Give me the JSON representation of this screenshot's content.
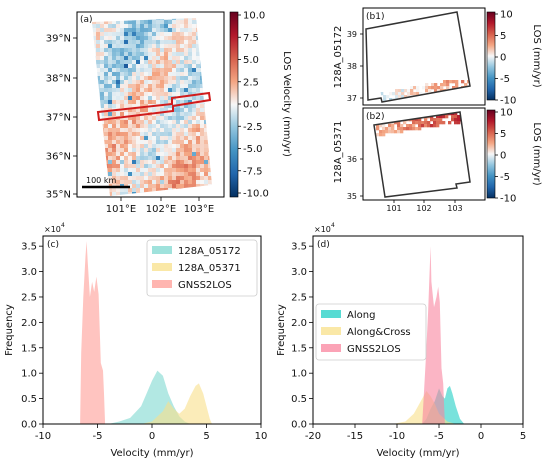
{
  "chart_data": [
    {
      "panel": "(a)",
      "type": "heatmap",
      "x_ticks": [
        "101°E",
        "102°E",
        "103°E"
      ],
      "y_ticks": [
        "35°N",
        "36°N",
        "37°N",
        "38°N",
        "39°N"
      ],
      "scalebar": "100 km",
      "colorbar": {
        "label": "LOS Velocity (mm/yr)",
        "ticks": [
          "10.0",
          "7.5",
          "5.0",
          "2.5",
          "0.0",
          "-2.5",
          "-5.0",
          "-7.5",
          "-10.0"
        ],
        "range": [
          -10,
          10
        ],
        "colormap": [
          "#053061",
          "#2166ac",
          "#4393c3",
          "#92c5de",
          "#f7f7f7",
          "#f4a582",
          "#d6604d",
          "#b2182b",
          "#67001f"
        ]
      },
      "highlight_color": "#d01c1c"
    },
    {
      "panel": "(b1)",
      "type": "heatmap",
      "ylabel": "128A_05172",
      "x_ticks": [],
      "y_ticks": [
        "37",
        "38",
        "39"
      ],
      "colorbar": {
        "label": "LOS (mm/yr)",
        "ticks": [
          "10",
          "5",
          "0",
          "-5",
          "-10"
        ],
        "range": [
          -10,
          10
        ]
      }
    },
    {
      "panel": "(b2)",
      "type": "heatmap",
      "ylabel": "128A_05371",
      "x_ticks": [
        "101",
        "102",
        "103"
      ],
      "y_ticks": [
        "35",
        "36"
      ],
      "colorbar": {
        "label": "LOS (mm/yr)",
        "ticks": [
          "10",
          "5",
          "0",
          "-5",
          "-10"
        ],
        "range": [
          -10,
          10
        ]
      }
    },
    {
      "panel": "(c)",
      "type": "area",
      "xlabel": "Velocity (mm/yr)",
      "ylabel": "Frequency",
      "y_multiplier": "×10",
      "y_multiplier_exp": "4",
      "xlim": [
        -10,
        10
      ],
      "ylim": [
        0,
        3.7
      ],
      "x_ticks": [
        "-10",
        "-5",
        "0",
        "5",
        "10"
      ],
      "y_ticks": [
        "0.0",
        "0.5",
        "1.0",
        "1.5",
        "2.0",
        "2.5",
        "3.0",
        "3.5"
      ],
      "legend_position": "top-right",
      "series": [
        {
          "name": "128A_05172",
          "color": "#7fd8d0",
          "points": [
            [
              -4,
              0
            ],
            [
              -3,
              0.05
            ],
            [
              -2,
              0.12
            ],
            [
              -1,
              0.35
            ],
            [
              -0.5,
              0.6
            ],
            [
              0,
              0.85
            ],
            [
              0.5,
              1.05
            ],
            [
              1,
              0.95
            ],
            [
              1.5,
              0.6
            ],
            [
              2,
              0.35
            ],
            [
              2.5,
              0.15
            ],
            [
              3,
              0.05
            ],
            [
              3.5,
              0
            ]
          ]
        },
        {
          "name": "128A_05371",
          "color": "#f8e08a",
          "points": [
            [
              -1,
              0
            ],
            [
              0,
              0.05
            ],
            [
              1,
              0.25
            ],
            [
              1.5,
              0.45
            ],
            [
              2,
              0.3
            ],
            [
              2.5,
              0.2
            ],
            [
              3,
              0.3
            ],
            [
              3.5,
              0.55
            ],
            [
              4,
              0.75
            ],
            [
              4.3,
              0.8
            ],
            [
              4.7,
              0.6
            ],
            [
              5,
              0.35
            ],
            [
              5.3,
              0.1
            ],
            [
              5.5,
              0
            ]
          ]
        },
        {
          "name": "GNSS2LOS",
          "color": "#ff9c96",
          "points": [
            [
              -6.6,
              0
            ],
            [
              -6.5,
              1.4
            ],
            [
              -6.3,
              2.5
            ],
            [
              -6.1,
              3.3
            ],
            [
              -6.0,
              3.6
            ],
            [
              -5.9,
              3.2
            ],
            [
              -5.7,
              2.5
            ],
            [
              -5.5,
              2.8
            ],
            [
              -5.3,
              2.6
            ],
            [
              -5.1,
              2.9
            ],
            [
              -4.9,
              2.55
            ],
            [
              -4.7,
              1.2
            ],
            [
              -4.5,
              1.05
            ],
            [
              -4.4,
              0.6
            ],
            [
              -4.3,
              0
            ]
          ]
        }
      ]
    },
    {
      "panel": "(d)",
      "type": "area",
      "xlabel": "Velocity (mm/yr)",
      "ylabel": "Frequency",
      "y_multiplier": "×10",
      "y_multiplier_exp": "4",
      "xlim": [
        -20,
        5
      ],
      "ylim": [
        0,
        3.7
      ],
      "x_ticks": [
        "-20",
        "-15",
        "-10",
        "-5",
        "0",
        "5"
      ],
      "y_ticks": [
        "0.0",
        "0.5",
        "1.0",
        "1.5",
        "2.0",
        "2.5",
        "3.0",
        "3.5"
      ],
      "legend_position": "center-left",
      "series": [
        {
          "name": "Along",
          "color": "#1fcfc4",
          "points": [
            [
              -7,
              0
            ],
            [
              -6.5,
              0.1
            ],
            [
              -6,
              0.3
            ],
            [
              -5.5,
              0.45
            ],
            [
              -5,
              0.7
            ],
            [
              -4.6,
              0.55
            ],
            [
              -4.3,
              0.5
            ],
            [
              -4,
              0.7
            ],
            [
              -3.7,
              0.75
            ],
            [
              -3.4,
              0.6
            ],
            [
              -3,
              0.35
            ],
            [
              -2.5,
              0.1
            ],
            [
              -2,
              0
            ]
          ]
        },
        {
          "name": "Along&Cross",
          "color": "#f8e08a",
          "points": [
            [
              -10.5,
              0
            ],
            [
              -9,
              0.05
            ],
            [
              -8,
              0.2
            ],
            [
              -7.5,
              0.35
            ],
            [
              -7,
              0.5
            ],
            [
              -6.5,
              0.65
            ],
            [
              -6,
              0.55
            ],
            [
              -5.5,
              0.4
            ],
            [
              -5,
              0.2
            ],
            [
              -4,
              0.05
            ],
            [
              -3,
              0
            ]
          ]
        },
        {
          "name": "GNSS2LOS",
          "color": "#f9849e",
          "points": [
            [
              -7,
              0
            ],
            [
              -6.8,
              0.6
            ],
            [
              -6.6,
              1.2
            ],
            [
              -6.3,
              2.2
            ],
            [
              -6.1,
              3.1
            ],
            [
              -6.0,
              3.5
            ],
            [
              -5.9,
              2.8
            ],
            [
              -5.6,
              2.3
            ],
            [
              -5.3,
              2.5
            ],
            [
              -5.1,
              2.7
            ],
            [
              -4.9,
              2.4
            ],
            [
              -4.7,
              1.1
            ],
            [
              -4.5,
              0.8
            ],
            [
              -4.3,
              0
            ]
          ]
        }
      ]
    }
  ]
}
